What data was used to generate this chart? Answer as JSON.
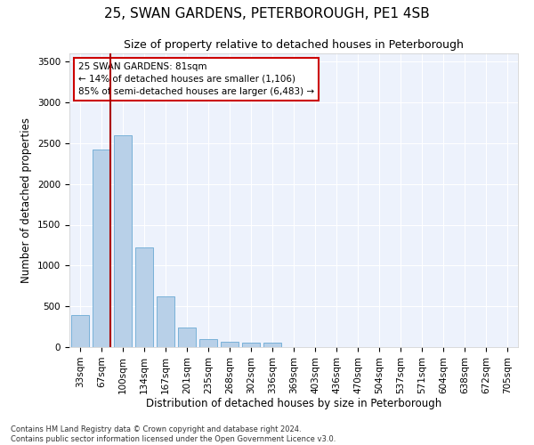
{
  "title1": "25, SWAN GARDENS, PETERBOROUGH, PE1 4SB",
  "title2": "Size of property relative to detached houses in Peterborough",
  "xlabel": "Distribution of detached houses by size in Peterborough",
  "ylabel": "Number of detached properties",
  "categories": [
    "33sqm",
    "67sqm",
    "100sqm",
    "134sqm",
    "167sqm",
    "201sqm",
    "235sqm",
    "268sqm",
    "302sqm",
    "336sqm",
    "369sqm",
    "403sqm",
    "436sqm",
    "470sqm",
    "504sqm",
    "537sqm",
    "571sqm",
    "604sqm",
    "638sqm",
    "672sqm",
    "705sqm"
  ],
  "bar_values": [
    390,
    2420,
    2600,
    1220,
    620,
    240,
    100,
    70,
    60,
    50,
    0,
    0,
    0,
    0,
    0,
    0,
    0,
    0,
    0,
    0,
    0
  ],
  "bar_color": "#b8d0e8",
  "bar_edge_color": "#6aaad4",
  "vline_color": "#aa0000",
  "annotation_text": "25 SWAN GARDENS: 81sqm\n← 14% of detached houses are smaller (1,106)\n85% of semi-detached houses are larger (6,483) →",
  "annotation_box_facecolor": "#ffffff",
  "annotation_box_edgecolor": "#cc0000",
  "ylim": [
    0,
    3600
  ],
  "yticks": [
    0,
    500,
    1000,
    1500,
    2000,
    2500,
    3000,
    3500
  ],
  "background_color": "#edf2fc",
  "grid_color": "#ffffff",
  "footer": "Contains HM Land Registry data © Crown copyright and database right 2024.\nContains public sector information licensed under the Open Government Licence v3.0.",
  "title1_fontsize": 11,
  "title2_fontsize": 9,
  "xlabel_fontsize": 8.5,
  "ylabel_fontsize": 8.5,
  "tick_fontsize": 7.5,
  "annotation_fontsize": 7.5,
  "footer_fontsize": 6
}
